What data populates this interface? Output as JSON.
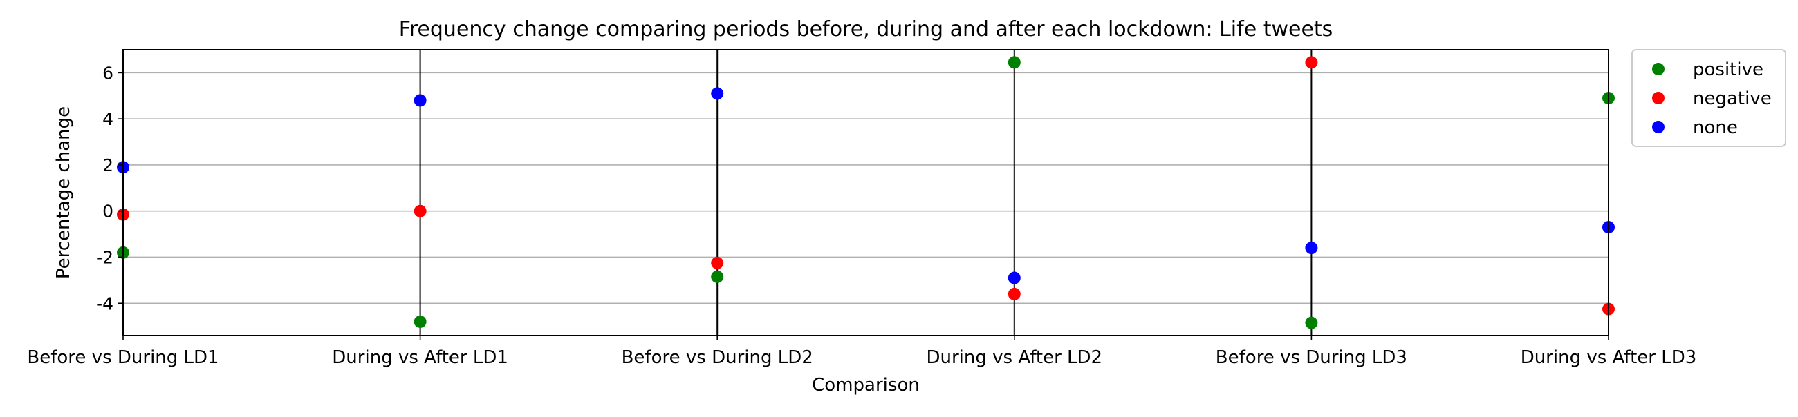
{
  "chart_data": {
    "type": "scatter",
    "title": "Frequency change comparing periods before, during and after each lockdown: Life tweets",
    "xlabel": "Comparison",
    "ylabel": "Percentage change",
    "categories": [
      "Before vs During LD1",
      "During vs After LD1",
      "Before vs During LD2",
      "During vs After LD2",
      "Before vs During LD3",
      "During vs After LD3"
    ],
    "ylim": [
      -5.4,
      7.0
    ],
    "yticks": [
      -4,
      -2,
      0,
      2,
      4,
      6
    ],
    "grid": "horizontal",
    "vertical_lines_at": [
      "During vs After LD1",
      "Before vs During LD2",
      "During vs After LD2",
      "Before vs During LD3"
    ],
    "legend_position": "outside-top-right",
    "series": [
      {
        "name": "positive",
        "color": "#008000",
        "values": [
          -1.8,
          -4.8,
          -2.85,
          6.45,
          -4.85,
          4.9
        ]
      },
      {
        "name": "negative",
        "color": "#ff0000",
        "values": [
          -0.15,
          0.0,
          -2.25,
          -3.6,
          6.45,
          -4.25
        ]
      },
      {
        "name": "none",
        "color": "#0000ff",
        "values": [
          1.9,
          4.8,
          5.1,
          -2.9,
          -1.6,
          -0.7
        ]
      }
    ]
  }
}
